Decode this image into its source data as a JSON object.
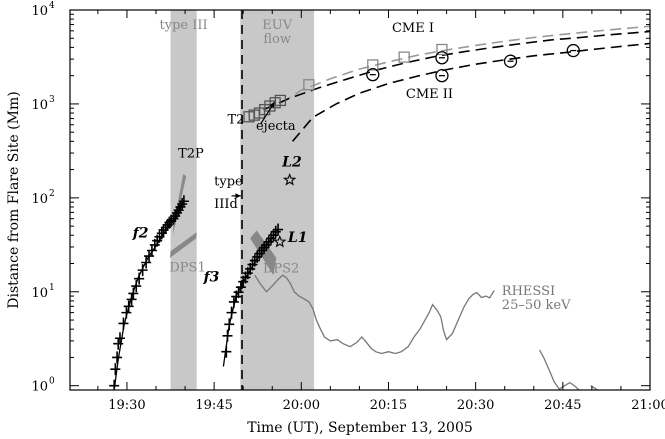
{
  "chart_data": {
    "type": "scatter",
    "xlabel": "Time (UT), September 13, 2005",
    "ylabel": "Distance from Flare Site (Mm)",
    "x_unit": "minutes after 19:00 UT",
    "xlim": [
      20.2,
      120
    ],
    "ylim": [
      0.9,
      10000
    ],
    "y_scale": "log",
    "x_ticks": [
      {
        "value": 30,
        "label": "19:30"
      },
      {
        "value": 45,
        "label": "19:45"
      },
      {
        "value": 60,
        "label": "20:00"
      },
      {
        "value": 75,
        "label": "20:15"
      },
      {
        "value": 90,
        "label": "20:30"
      },
      {
        "value": 105,
        "label": "20:45"
      },
      {
        "value": 120,
        "label": "21:00"
      }
    ],
    "y_ticks": [
      {
        "value": 1,
        "label": "10",
        "exp": "0"
      },
      {
        "value": 10,
        "label": "10",
        "exp": "1"
      },
      {
        "value": 100,
        "label": "10",
        "exp": "2"
      },
      {
        "value": 1000,
        "label": "10",
        "exp": "3"
      },
      {
        "value": 10000,
        "label": "10",
        "exp": "4"
      }
    ],
    "shaded_bands": [
      {
        "label": "type III",
        "x0": 37.5,
        "x1": 42.0,
        "label_y": 6300
      },
      {
        "label_lines": [
          "EUV",
          "flow"
        ],
        "x0": 49.5,
        "x1": 62.2,
        "label_y": 6300
      }
    ],
    "vertical_dashed_line": {
      "x": 49.8
    },
    "series": [
      {
        "name": "f2",
        "marker": "plus",
        "points": [
          [
            27.8,
            1.0
          ],
          [
            28.0,
            1.5
          ],
          [
            28.3,
            2.0
          ],
          [
            28.5,
            2.8
          ],
          [
            28.8,
            3.2
          ],
          [
            29.4,
            4.6
          ],
          [
            29.9,
            6.0
          ],
          [
            30.3,
            7.0
          ],
          [
            30.8,
            8.3
          ],
          [
            31.1,
            9.6
          ],
          [
            31.6,
            11.5
          ],
          [
            32.1,
            13.8
          ],
          [
            32.7,
            17.0
          ],
          [
            33.3,
            20.5
          ],
          [
            33.8,
            24.0
          ],
          [
            34.3,
            27.5
          ],
          [
            34.8,
            31.5
          ],
          [
            35.2,
            35.0
          ],
          [
            35.6,
            38.5
          ],
          [
            36.0,
            42.0
          ],
          [
            36.3,
            45.5
          ],
          [
            36.7,
            48.5
          ],
          [
            37.0,
            51.5
          ],
          [
            37.3,
            54.5
          ],
          [
            37.6,
            57.0
          ],
          [
            38.0,
            60.0
          ],
          [
            38.3,
            64.0
          ],
          [
            38.6,
            69.0
          ],
          [
            38.9,
            74.0
          ],
          [
            39.2,
            80.0
          ],
          [
            39.5,
            86.0
          ],
          [
            39.8,
            92.0
          ]
        ],
        "fit_line": [
          [
            27.8,
            0.9
          ],
          [
            28.5,
            1.9
          ],
          [
            29.5,
            4.4
          ],
          [
            30.7,
            8.5
          ],
          [
            32.0,
            14.5
          ],
          [
            33.6,
            23.0
          ],
          [
            35.3,
            33.0
          ],
          [
            36.8,
            46.0
          ],
          [
            38.3,
            62.0
          ],
          [
            39.7,
            93.0
          ]
        ]
      },
      {
        "name": "f3",
        "marker": "plus",
        "points": [
          [
            47.1,
            2.3
          ],
          [
            47.3,
            3.4
          ],
          [
            47.6,
            4.5
          ],
          [
            48.0,
            6.0
          ],
          [
            48.4,
            7.8
          ],
          [
            48.8,
            8.9
          ],
          [
            49.2,
            9.9
          ],
          [
            49.6,
            11.2
          ],
          [
            50.0,
            12.8
          ],
          [
            50.4,
            14.2
          ],
          [
            50.8,
            15.8
          ],
          [
            51.2,
            17.5
          ],
          [
            51.6,
            19.5
          ],
          [
            52.0,
            21.5
          ],
          [
            52.4,
            23.5
          ],
          [
            52.8,
            25.5
          ],
          [
            53.2,
            27.5
          ],
          [
            53.6,
            29.5
          ],
          [
            54.0,
            31.5
          ],
          [
            54.4,
            34.0
          ],
          [
            54.8,
            37.0
          ],
          [
            55.2,
            40.0
          ],
          [
            55.6,
            43.5
          ],
          [
            56.0,
            46.0
          ]
        ],
        "fit_line": [
          [
            46.6,
            1.6
          ],
          [
            47.6,
            4.4
          ],
          [
            48.8,
            9.0
          ],
          [
            50.4,
            14.0
          ],
          [
            52.3,
            22.0
          ],
          [
            54.3,
            33.0
          ],
          [
            56.1,
            46.0
          ]
        ]
      },
      {
        "name": "T2",
        "marker": "square",
        "color": "#555555",
        "points": [
          [
            51.0,
            730
          ],
          [
            51.9,
            760
          ],
          [
            52.8,
            800
          ],
          [
            53.7,
            870
          ],
          [
            54.6,
            950
          ],
          [
            55.5,
            1030
          ],
          [
            56.4,
            1090
          ]
        ]
      },
      {
        "name": "CME I",
        "marker": "square",
        "color": "#888888",
        "points": [
          [
            61.3,
            1600
          ],
          [
            72.3,
            2600
          ],
          [
            77.7,
            3150
          ],
          [
            84.2,
            3800
          ]
        ],
        "fit_line": [
          [
            56.5,
            1020
          ],
          [
            60,
            1400
          ],
          [
            65,
            1850
          ],
          [
            70,
            2350
          ],
          [
            75,
            2800
          ],
          [
            80,
            3300
          ],
          [
            85,
            3750
          ],
          [
            90,
            4200
          ],
          [
            95,
            4650
          ],
          [
            100,
            5100
          ],
          [
            105,
            5500
          ],
          [
            110,
            5900
          ],
          [
            115,
            6300
          ],
          [
            120,
            6700
          ]
        ]
      },
      {
        "name": "CME II",
        "marker": "circle",
        "color": "#000000",
        "points": [
          [
            72.3,
            2050
          ],
          [
            84.2,
            2000
          ],
          [
            84.2,
            3100
          ],
          [
            96.0,
            2850
          ],
          [
            106.8,
            3700
          ]
        ]
      }
    ],
    "dashed_fits": [
      {
        "points": [
          [
            53.5,
            870
          ],
          [
            58,
            1150
          ],
          [
            63,
            1480
          ],
          [
            68,
            1850
          ],
          [
            73,
            2300
          ],
          [
            78,
            2750
          ],
          [
            83,
            3200
          ],
          [
            88,
            3600
          ],
          [
            93,
            4000
          ],
          [
            98,
            4400
          ],
          [
            103,
            4800
          ],
          [
            108,
            5100
          ],
          [
            113,
            5450
          ],
          [
            120,
            5900
          ]
        ]
      },
      {
        "points": [
          [
            58.5,
            400
          ],
          [
            62,
            720
          ],
          [
            66,
            1000
          ],
          [
            70,
            1300
          ],
          [
            75,
            1650
          ],
          [
            80,
            1980
          ],
          [
            85,
            2320
          ],
          [
            90,
            2650
          ],
          [
            95,
            2950
          ],
          [
            100,
            3250
          ],
          [
            105,
            3500
          ],
          [
            110,
            3800
          ],
          [
            115,
            4100
          ],
          [
            120,
            4400
          ]
        ]
      }
    ],
    "star_points": [
      {
        "name": "L2",
        "x": 58.0,
        "y": 155
      },
      {
        "name": "L1",
        "x": 56.3,
        "y": 34
      }
    ],
    "shaded_patches": [
      {
        "name": "T2P",
        "color": "#888888",
        "points": [
          [
            37.9,
            40
          ],
          [
            38.0,
            50
          ],
          [
            39.7,
            180
          ],
          [
            40.2,
            170
          ]
        ]
      },
      {
        "name": "DPS1",
        "color": "#888888",
        "points": [
          [
            37.4,
            23
          ],
          [
            37.5,
            27
          ],
          [
            42.0,
            43
          ],
          [
            41.9,
            37
          ]
        ]
      },
      {
        "name": "DPS2",
        "color": "#888888",
        "points": [
          [
            51.2,
            37
          ],
          [
            52.3,
            45
          ],
          [
            55.7,
            23
          ],
          [
            55.2,
            15
          ]
        ]
      }
    ],
    "rhessi": {
      "name_lines": [
        "RHESSI",
        "25–50 keV"
      ],
      "color": "#777777",
      "segments": [
        [
          [
            52.0,
            15.0
          ],
          [
            53.0,
            12.0
          ],
          [
            54.0,
            10.0
          ],
          [
            55.0,
            11.5
          ],
          [
            56.0,
            13.5
          ],
          [
            56.8,
            15.0
          ],
          [
            57.5,
            14.0
          ],
          [
            58.2,
            12.0
          ],
          [
            58.8,
            10.0
          ],
          [
            59.6,
            9.0
          ],
          [
            60.5,
            8.4
          ],
          [
            61.3,
            7.8
          ],
          [
            62.0,
            6.6
          ],
          [
            62.6,
            5.0
          ],
          [
            63.3,
            4.0
          ],
          [
            64.0,
            3.3
          ],
          [
            65.0,
            3.0
          ],
          [
            66.2,
            3.1
          ],
          [
            67.2,
            2.8
          ],
          [
            68.4,
            2.6
          ],
          [
            69.6,
            2.9
          ],
          [
            70.4,
            3.3
          ],
          [
            71.2,
            2.9
          ],
          [
            72.0,
            2.5
          ],
          [
            72.8,
            2.3
          ],
          [
            73.8,
            2.2
          ],
          [
            75.0,
            2.3
          ],
          [
            76.2,
            2.2
          ],
          [
            77.2,
            2.3
          ],
          [
            78.4,
            2.6
          ],
          [
            79.4,
            3.3
          ],
          [
            80.4,
            4.0
          ],
          [
            81.2,
            4.9
          ],
          [
            82.0,
            6.0
          ],
          [
            82.6,
            7.3
          ],
          [
            83.4,
            6.3
          ],
          [
            84.0,
            5.4
          ],
          [
            84.5,
            3.8
          ],
          [
            85.0,
            3.1
          ],
          [
            86.0,
            3.6
          ],
          [
            87.0,
            5.0
          ],
          [
            88.0,
            6.9
          ],
          [
            88.8,
            8.4
          ],
          [
            89.5,
            9.3
          ],
          [
            90.2,
            9.8
          ],
          [
            91.0,
            8.7
          ],
          [
            91.8,
            9.0
          ],
          [
            92.4,
            8.6
          ],
          [
            93.2,
            10.3
          ]
        ],
        [
          [
            101.0,
            2.4
          ],
          [
            101.7,
            2.0
          ],
          [
            102.6,
            1.5
          ],
          [
            103.5,
            1.1
          ],
          [
            104.4,
            0.92
          ],
          [
            105.3,
            1.0
          ],
          [
            106.2,
            1.08
          ],
          [
            107.0,
            1.0
          ],
          [
            107.8,
            0.9
          ]
        ],
        [
          [
            109.8,
            1.0
          ],
          [
            110.4,
            0.95
          ],
          [
            111.0,
            0.9
          ]
        ]
      ]
    },
    "annotations": [
      {
        "text": "CME I",
        "x": 75.6,
        "y": 5800,
        "color": "#000000"
      },
      {
        "text": "CME II",
        "x": 78.0,
        "y": 1150,
        "color": "#000000"
      },
      {
        "text": "ejecta",
        "x": 52.2,
        "y": 530,
        "color": "#000000"
      },
      {
        "text": "T2",
        "x": 47.3,
        "y": 620,
        "color": "#000000"
      },
      {
        "text": "T2P",
        "x": 38.8,
        "y": 270,
        "color": "#000000"
      },
      {
        "text": "type",
        "x": 45.0,
        "y": 135,
        "color": "#000000"
      },
      {
        "text": "IIId",
        "x": 45.0,
        "y": 78,
        "color": "#000000"
      },
      {
        "text": "DPS1",
        "x": 37.3,
        "y": 16.5,
        "color": "#888888"
      },
      {
        "text": "DPS2",
        "x": 53.4,
        "y": 16.0,
        "color": "#888888"
      },
      {
        "text": "f2",
        "x": 31.0,
        "y": 38,
        "color": "#000000"
      },
      {
        "text": "f3",
        "x": 43.2,
        "y": 12.8,
        "color": "#000000"
      },
      {
        "text": "L2",
        "x": 56.7,
        "y": 215,
        "color": "#000000"
      },
      {
        "text": "L1",
        "x": 57.7,
        "y": 34,
        "color": "#000000"
      }
    ],
    "arrows": [
      {
        "name": "ejecta-arrow",
        "from": [
          53.0,
          610
        ],
        "to": [
          55.4,
          1050
        ]
      },
      {
        "name": "type-IIId-arrow",
        "from": [
          48.0,
          105
        ],
        "to": [
          49.6,
          105
        ]
      }
    ]
  }
}
